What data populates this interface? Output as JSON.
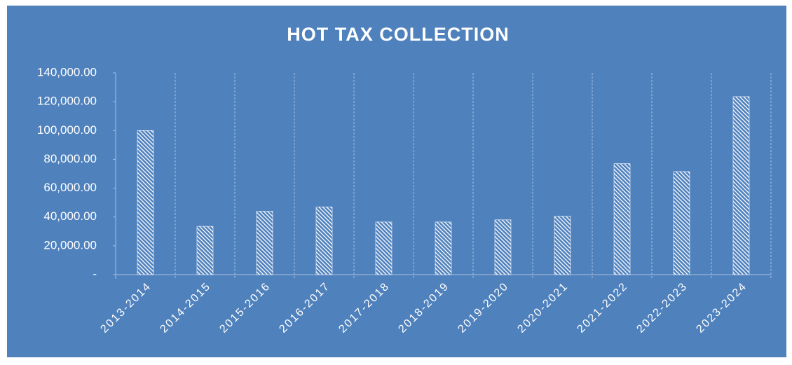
{
  "chart_data": {
    "type": "bar",
    "title": "HOT TAX COLLECTION",
    "categories": [
      "2013-2014",
      "2014-2015",
      "2015-2016",
      "2016-2017",
      "2017-2018",
      "2018-2019",
      "2019-2020",
      "2020-2021",
      "2021-2022",
      "2022-2023",
      "2023-2024"
    ],
    "values": [
      100000,
      33500,
      44000,
      47000,
      36500,
      36500,
      38000,
      40500,
      77000,
      71500,
      123500
    ],
    "color": "#ffffff",
    "ylim": [
      0,
      140000
    ],
    "yticks": [
      {
        "value": 0,
        "label": "-"
      },
      {
        "value": 20000,
        "label": "20,000.00"
      },
      {
        "value": 40000,
        "label": "40,000.00"
      },
      {
        "value": 60000,
        "label": "60,000.00"
      },
      {
        "value": 80000,
        "label": "80,000.00"
      },
      {
        "value": 100000,
        "label": "100,000.00"
      },
      {
        "value": 120000,
        "label": "120,000.00"
      },
      {
        "value": 140000,
        "label": "140,000.00"
      }
    ]
  }
}
